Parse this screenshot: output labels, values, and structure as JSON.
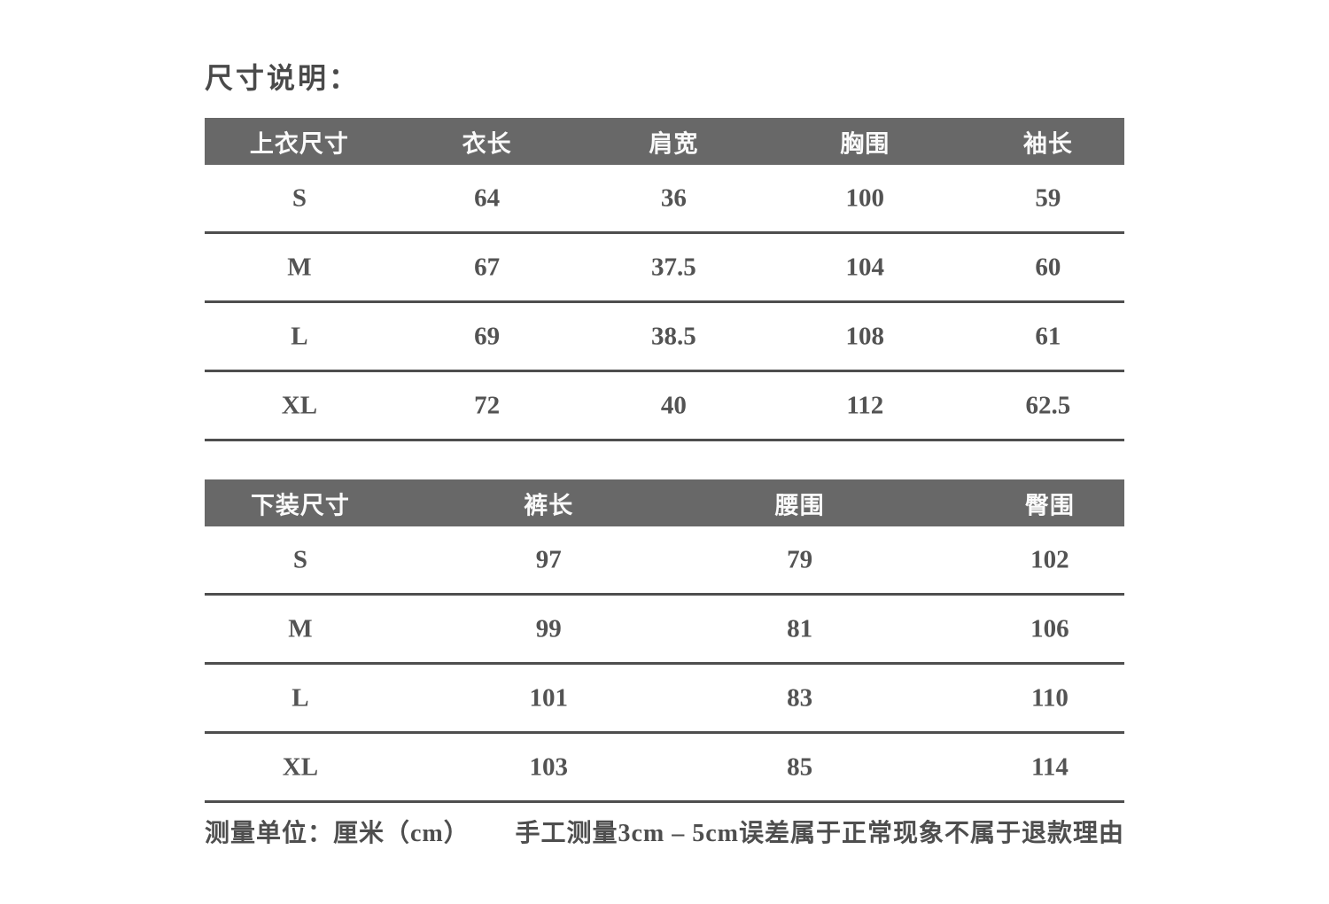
{
  "title": "尺寸说明：",
  "colors": {
    "header_bg": "#686868",
    "header_text": "#fafafa",
    "body_text": "#535353",
    "row_line": "#4e4e4e",
    "background": "#ffffff"
  },
  "unit": "cm",
  "tables": [
    {
      "name": "上衣尺寸",
      "headers": [
        "上衣尺寸",
        "衣长",
        "肩宽",
        "胸围",
        "袖长"
      ],
      "rows": [
        [
          "S",
          "64",
          "36",
          "100",
          "59"
        ],
        [
          "M",
          "67",
          "37.5",
          "104",
          "60"
        ],
        [
          "L",
          "69",
          "38.5",
          "108",
          "61"
        ],
        [
          "XL",
          "72",
          "40",
          "112",
          "62.5"
        ]
      ]
    },
    {
      "name": "下装尺寸",
      "headers": [
        "下装尺寸",
        "裤长",
        "腰围",
        "臀围"
      ],
      "rows": [
        [
          "S",
          "97",
          "79",
          "102"
        ],
        [
          "M",
          "99",
          "81",
          "106"
        ],
        [
          "L",
          "101",
          "83",
          "110"
        ],
        [
          "XL",
          "103",
          "85",
          "114"
        ]
      ]
    }
  ],
  "footer": {
    "left": "测量单位：厘米（cm）",
    "right": "手工测量3cm – 5cm误差属于正常现象不属于退款理由"
  }
}
